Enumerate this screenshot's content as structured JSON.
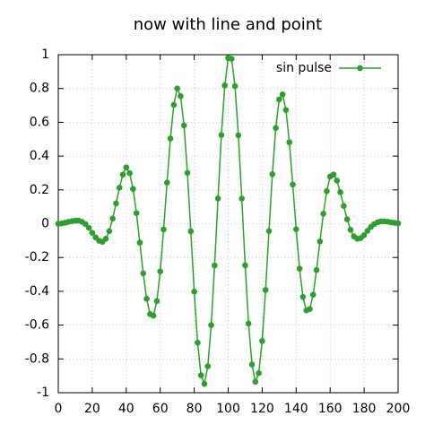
{
  "chart_data": {
    "type": "line",
    "title": "now with line and point",
    "x": [
      0,
      2,
      4,
      6,
      8,
      10,
      12,
      14,
      16,
      18,
      20,
      22,
      24,
      26,
      28,
      30,
      32,
      34,
      36,
      38,
      40,
      42,
      44,
      46,
      48,
      50,
      52,
      54,
      56,
      58,
      60,
      62,
      64,
      66,
      68,
      70,
      72,
      74,
      76,
      78,
      80,
      82,
      84,
      86,
      88,
      90,
      92,
      94,
      96,
      98,
      100,
      102,
      104,
      106,
      108,
      110,
      112,
      114,
      116,
      118,
      120,
      122,
      124,
      126,
      128,
      130,
      132,
      134,
      136,
      138,
      140,
      142,
      144,
      146,
      148,
      150,
      152,
      154,
      156,
      158,
      160,
      162,
      164,
      166,
      168,
      170,
      172,
      174,
      176,
      178,
      180,
      182,
      184,
      186,
      188,
      190,
      192,
      194,
      196,
      198,
      200
    ],
    "series": [
      {
        "name": "sin pulse",
        "color": "#2ca02c",
        "values": [
          0,
          0.002,
          0.006,
          0.011,
          0.015,
          0.018,
          0.018,
          0.011,
          -0.002,
          -0.024,
          -0.054,
          -0.081,
          -0.101,
          -0.107,
          -0.089,
          -0.044,
          0.03,
          0.12,
          0.213,
          0.291,
          0.333,
          0.299,
          0.206,
          0.063,
          -0.112,
          -0.294,
          -0.444,
          -0.535,
          -0.544,
          -0.458,
          -0.282,
          -0.034,
          0.243,
          0.504,
          0.703,
          0.8,
          0.755,
          0.582,
          0.301,
          -0.045,
          -0.402,
          -0.704,
          -0.897,
          -0.948,
          -0.844,
          -0.6,
          -0.247,
          0.149,
          0.525,
          0.818,
          0.98,
          0.976,
          0.814,
          0.523,
          0.149,
          -0.246,
          -0.591,
          -0.833,
          -0.935,
          -0.884,
          -0.694,
          -0.392,
          -0.044,
          0.293,
          0.566,
          0.735,
          0.765,
          0.673,
          0.482,
          0.232,
          -0.033,
          -0.266,
          -0.433,
          -0.513,
          -0.505,
          -0.42,
          -0.274,
          -0.105,
          0.059,
          0.193,
          0.279,
          0.291,
          0.255,
          0.186,
          0.105,
          0.026,
          -0.036,
          -0.075,
          -0.089,
          -0.085,
          -0.068,
          -0.042,
          -0.019,
          -0.002,
          0.009,
          0.014,
          0.014,
          0.012,
          0.008,
          0.005,
          0.002
        ]
      }
    ],
    "xlim": [
      0,
      200
    ],
    "xticks": [
      0,
      20,
      40,
      60,
      80,
      100,
      120,
      140,
      160,
      180,
      200
    ],
    "ylim": [
      -1,
      1
    ],
    "yticks": [
      -1,
      -0.8,
      -0.6,
      -0.4,
      -0.2,
      0,
      0.2,
      0.4,
      0.6,
      0.8,
      1
    ],
    "grid": true,
    "legend": "top right"
  }
}
